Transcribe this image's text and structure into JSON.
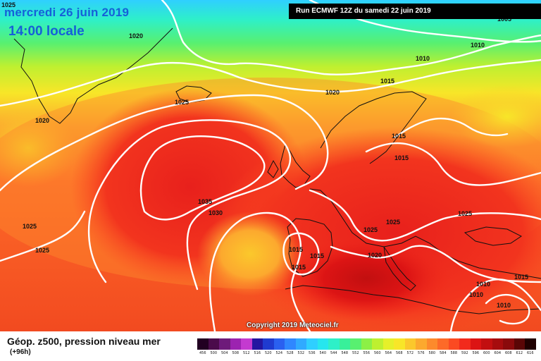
{
  "header": {
    "date_line": "mercredi 26 juin 2019",
    "time_line": "14:00 locale",
    "run_info": "Run ECMWF 12Z du samedi 22 juin 2019"
  },
  "copyright": "Copyright 2019 Meteociel.fr",
  "legend": {
    "title": "Géop. z500, pression niveau mer",
    "subtitle": "(+96h)",
    "scale_labels": [
      "456",
      "500",
      "504",
      "508",
      "512",
      "516",
      "520",
      "524",
      "528",
      "532",
      "536",
      "540",
      "544",
      "548",
      "552",
      "556",
      "560",
      "564",
      "568",
      "572",
      "576",
      "580",
      "584",
      "588",
      "592",
      "596",
      "600",
      "604",
      "608",
      "612",
      "616"
    ],
    "scale_colors": [
      "#220022",
      "#4b0b4b",
      "#6e1a7a",
      "#9c23b0",
      "#c43ad0",
      "#2416a0",
      "#1f3bd0",
      "#2a60f0",
      "#2f87ff",
      "#30aaff",
      "#2fcfff",
      "#27e6ee",
      "#2ef0c8",
      "#38f09a",
      "#58f070",
      "#8cf046",
      "#bef030",
      "#e6f02a",
      "#f8e628",
      "#fbc82c",
      "#fca92e",
      "#fd8a2c",
      "#fd6a28",
      "#fb4a22",
      "#f22a1c",
      "#dc1414",
      "#c20f10",
      "#a60c0e",
      "#8a0a0c",
      "#5a0606",
      "#200000"
    ]
  },
  "isobar_labels": [
    {
      "text": "1025",
      "id": "isobar-label-1025-nw"
    },
    {
      "text": "1020",
      "id": "isobar-label-1020-greenland-south"
    },
    {
      "text": "1020",
      "id": "isobar-label-1020-west"
    },
    {
      "text": "1025",
      "id": "isobar-label-1025-atlantic-north"
    },
    {
      "text": "1020",
      "id": "isobar-label-1020-north-sea"
    },
    {
      "text": "1015",
      "id": "isobar-label-1015-norway"
    },
    {
      "text": "1010",
      "id": "isobar-label-1010-scandinavia"
    },
    {
      "text": "1010",
      "id": "isobar-label-1010-northeast"
    },
    {
      "text": "1015",
      "id": "isobar-label-1015-baltic-a"
    },
    {
      "text": "1015",
      "id": "isobar-label-1015-baltic-b"
    },
    {
      "text": "1035",
      "id": "isobar-label-1035"
    },
    {
      "text": "1030",
      "id": "isobar-label-1030"
    },
    {
      "text": "1025",
      "id": "isobar-label-1025-sw-a"
    },
    {
      "text": "1025",
      "id": "isobar-label-1025-sw-b"
    },
    {
      "text": "1025",
      "id": "isobar-label-1025-france"
    },
    {
      "text": "1025",
      "id": "isobar-label-1025-germany"
    },
    {
      "text": "1025",
      "id": "isobar-label-1025-east"
    },
    {
      "text": "1020",
      "id": "isobar-label-1020-alps"
    },
    {
      "text": "1015",
      "id": "isobar-label-1015-iberia-a"
    },
    {
      "text": "1015",
      "id": "isobar-label-1015-iberia-b"
    },
    {
      "text": "1015",
      "id": "isobar-label-1015-iberia-c"
    },
    {
      "text": "1010",
      "id": "isobar-label-1010-balkans"
    },
    {
      "text": "1010",
      "id": "isobar-label-1010-turkey-a"
    },
    {
      "text": "1010",
      "id": "isobar-label-1010-turkey-b"
    },
    {
      "text": "1015",
      "id": "isobar-label-1015-black-sea"
    },
    {
      "text": "1005",
      "id": "isobar-label-1005-ne-corner"
    }
  ]
}
